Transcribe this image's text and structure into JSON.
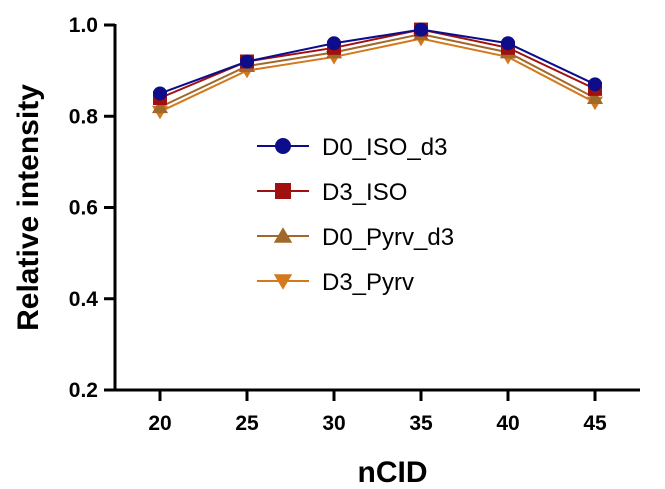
{
  "chart_data": {
    "type": "line",
    "xlabel": "nCID",
    "ylabel": "Relative intensity",
    "x": [
      20,
      25,
      30,
      35,
      40,
      45
    ],
    "xticks": [
      "20",
      "25",
      "30",
      "35",
      "40",
      "45"
    ],
    "ylim": [
      0.2,
      1.0
    ],
    "yticks": [
      "0.2",
      "0.4",
      "0.6",
      "0.8",
      "1.0"
    ],
    "grid": false,
    "legend_position": "center",
    "series": [
      {
        "name": "D0_ISO_d3",
        "color": "#0d0d8c",
        "marker": "circle",
        "values": [
          0.85,
          0.92,
          0.96,
          0.99,
          0.96,
          0.87
        ]
      },
      {
        "name": "D3_ISO",
        "color": "#a01010",
        "marker": "square",
        "values": [
          0.84,
          0.92,
          0.95,
          0.99,
          0.95,
          0.86
        ]
      },
      {
        "name": "D0_Pyrv_d3",
        "color": "#a0692a",
        "marker": "triangle-up",
        "values": [
          0.82,
          0.91,
          0.94,
          0.98,
          0.94,
          0.84
        ]
      },
      {
        "name": "D3_Pyrv",
        "color": "#d4781e",
        "marker": "triangle-down",
        "values": [
          0.81,
          0.9,
          0.93,
          0.97,
          0.93,
          0.83
        ]
      }
    ]
  }
}
